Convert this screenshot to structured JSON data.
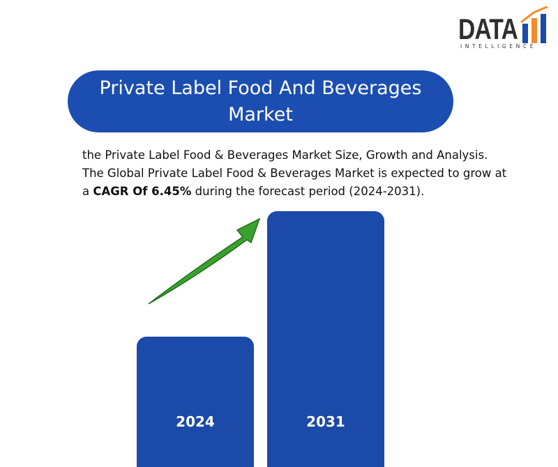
{
  "logo": {
    "name": "DATA",
    "tagline": "INTELLIGENCE"
  },
  "title": "Private Label Food And Beverages Market",
  "description": {
    "lines": [
      "the Private Label Food & Beverages Market Size, Growth and Analysis.",
      "The Global Private Label Food & Beverages Market is expected to grow at"
    ],
    "last_line": {
      "before": "a ",
      "bold": "CAGR Of 6.45%",
      "after": " during the forecast period (2024-2031)."
    }
  },
  "bars": [
    {
      "label": "2024"
    },
    {
      "label": "2031"
    }
  ]
}
